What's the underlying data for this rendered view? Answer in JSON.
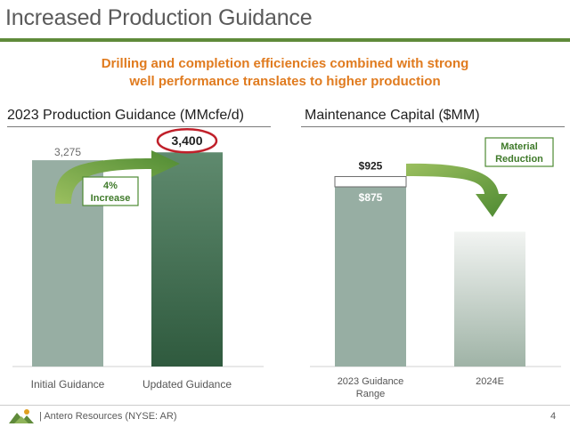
{
  "slide": {
    "title": "Increased Production Guidance",
    "subtitle_line1": "Drilling and completion efficiencies combined with strong",
    "subtitle_line2": "well performance translates to higher production",
    "footer": "Antero Resources (NYSE: AR)",
    "page_number": "4",
    "colors": {
      "accent_green": "#5f8a3a",
      "subtitle_orange": "#e07b1f",
      "highlight_red": "#c0202a"
    }
  },
  "chart_data": [
    {
      "type": "bar",
      "title": "2023 Production Guidance (MMcfe/d)",
      "categories": [
        "Initial Guidance",
        "Updated Guidance"
      ],
      "values": [
        3275,
        3400
      ],
      "data_labels": [
        "3,275",
        "3,400"
      ],
      "ylim": [
        0,
        3700
      ],
      "annotation": {
        "text_line1": "4%",
        "text_line2": "Increase",
        "icon": "curved-up-arrow"
      }
    },
    {
      "type": "bar",
      "title": "Maintenance Capital ($MM)",
      "categories_lines": [
        [
          "2023 Guidance",
          "Range"
        ],
        [
          "2024E"
        ]
      ],
      "range_low": 875,
      "range_high": 925,
      "range_labels": [
        "$875",
        "$925"
      ],
      "e2024_relative": 0.75,
      "annotation": {
        "text_line1": "Material",
        "text_line2": "Reduction",
        "icon": "curved-down-arrow"
      }
    }
  ]
}
